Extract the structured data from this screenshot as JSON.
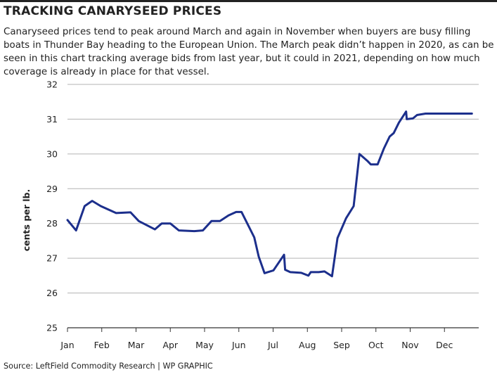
{
  "header": {
    "title": "TRACKING CANARYSEED PRICES",
    "subtitle": "Canaryseed prices tend to peak around March and again in November when buyers are busy filling boats in Thunder Bay heading to the European Union. The March peak didn’t happen in 2020, as can be seen in this chart tracking average bids from last year, but it could in 2021, depending on how much coverage is already in place for that vessel."
  },
  "footer": {
    "source": "Source: LeftField Commodity Research  |  WP GRAPHIC"
  },
  "colors": {
    "line": "#1c2f8c",
    "grid": "#b3b3b3",
    "axis": "#333333"
  },
  "chart_data": {
    "type": "line",
    "ylabel": "cents per lb.",
    "xlabel": "",
    "ylim": [
      25,
      32
    ],
    "yticks": [
      25,
      26,
      27,
      28,
      29,
      30,
      31,
      32
    ],
    "xlim": [
      0,
      12
    ],
    "months": [
      "Jan",
      "Feb",
      "Mar",
      "Apr",
      "May",
      "Jun",
      "Jul",
      "Aug",
      "Sep",
      "Oct",
      "Nov",
      "Dec"
    ],
    "grid": "horizontal",
    "series": [
      {
        "x": [
          0.0,
          0.25,
          0.5,
          0.72,
          0.97,
          1.42,
          1.84,
          2.08,
          2.55,
          2.75,
          3.0,
          3.25,
          3.7,
          3.95,
          4.2,
          4.45,
          4.7,
          4.92,
          5.08,
          5.45,
          5.58,
          5.75,
          6.01,
          6.32,
          6.35,
          6.5,
          6.82,
          7.03,
          7.1,
          7.33,
          7.5,
          7.72,
          7.88,
          8.13,
          8.35,
          8.52,
          8.75,
          8.85,
          9.05,
          9.23,
          9.4,
          9.52,
          9.67,
          9.88,
          9.9,
          10.08,
          10.2,
          10.45,
          10.85,
          11.05,
          11.52,
          11.8
        ],
        "values": [
          28.1,
          27.8,
          28.5,
          28.65,
          28.5,
          28.3,
          28.32,
          28.07,
          27.83,
          28.0,
          28.0,
          27.8,
          27.78,
          27.8,
          28.07,
          28.07,
          28.23,
          28.33,
          28.33,
          27.6,
          27.05,
          26.57,
          26.65,
          27.1,
          26.67,
          26.6,
          26.58,
          26.5,
          26.6,
          26.6,
          26.62,
          26.48,
          27.58,
          28.15,
          28.5,
          30.0,
          29.8,
          29.7,
          29.7,
          30.15,
          30.5,
          30.6,
          30.9,
          31.22,
          31.0,
          31.02,
          31.12,
          31.16,
          31.16,
          31.16,
          31.16,
          31.16
        ]
      }
    ]
  }
}
